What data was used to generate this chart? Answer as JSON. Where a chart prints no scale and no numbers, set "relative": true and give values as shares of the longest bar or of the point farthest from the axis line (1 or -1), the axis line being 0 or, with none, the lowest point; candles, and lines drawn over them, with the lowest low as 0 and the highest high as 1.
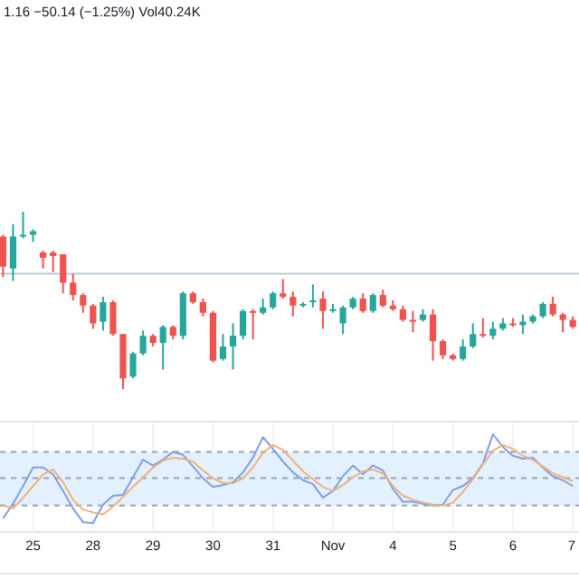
{
  "chart_data": [
    {
      "type": "candlestick",
      "relative": true,
      "annotations": [
        "1.16 −50.14 (−1.25%) Vol40.24K"
      ],
      "categories": [
        null,
        null,
        null,
        null,
        null,
        null,
        null,
        null,
        null,
        null,
        null,
        null,
        null,
        null,
        null,
        null,
        null,
        null,
        null,
        null,
        null,
        null,
        null,
        null,
        null,
        null,
        null,
        null,
        null,
        null,
        null,
        null,
        null,
        null,
        null,
        null,
        null,
        null,
        null,
        null,
        null,
        null,
        null,
        null,
        null,
        null,
        null,
        null,
        null,
        null,
        null,
        null,
        null,
        null,
        null,
        null,
        null,
        null
      ],
      "ohlc": [
        [
          0.86,
          0.87,
          0.63,
          0.69
        ],
        [
          0.68,
          0.93,
          0.61,
          0.86
        ],
        [
          0.86,
          1,
          0.85,
          0.87
        ],
        [
          0.87,
          0.9,
          0.83,
          0.89
        ],
        [
          0.77,
          0.78,
          0.68,
          0.74
        ],
        [
          0.77,
          0.78,
          0.66,
          0.75
        ],
        [
          0.76,
          0.76,
          0.54,
          0.6
        ],
        [
          0.6,
          0.65,
          0.5,
          0.53
        ],
        [
          0.53,
          0.54,
          0.43,
          0.47
        ],
        [
          0.47,
          0.48,
          0.34,
          0.37
        ],
        [
          0.38,
          0.52,
          0.33,
          0.49
        ],
        [
          0.49,
          0.5,
          0.3,
          0.31
        ],
        [
          0.31,
          0.31,
          0,
          0.06
        ],
        [
          0.07,
          0.21,
          0.06,
          0.2
        ],
        [
          0.2,
          0.33,
          0.19,
          0.3
        ],
        [
          0.3,
          0.31,
          0.24,
          0.26
        ],
        [
          0.26,
          0.36,
          0.11,
          0.35
        ],
        [
          0.35,
          0.36,
          0.28,
          0.3
        ],
        [
          0.3,
          0.55,
          0.28,
          0.54
        ],
        [
          0.54,
          0.55,
          0.48,
          0.49
        ],
        [
          0.49,
          0.51,
          0.41,
          0.43
        ],
        [
          0.43,
          0.44,
          0.15,
          0.16
        ],
        [
          0.17,
          0.31,
          0.16,
          0.24
        ],
        [
          0.24,
          0.37,
          0.11,
          0.3
        ],
        [
          0.3,
          0.45,
          0.28,
          0.44
        ],
        [
          0.44,
          0.45,
          0.28,
          0.43
        ],
        [
          0.43,
          0.51,
          0.42,
          0.46
        ],
        [
          0.46,
          0.55,
          0.45,
          0.54
        ],
        [
          0.54,
          0.62,
          0.51,
          0.52
        ],
        [
          0.52,
          0.55,
          0.41,
          0.47
        ],
        [
          0.47,
          0.49,
          0.46,
          0.48
        ],
        [
          0.49,
          0.59,
          0.46,
          0.5
        ],
        [
          0.51,
          0.55,
          0.34,
          0.44
        ],
        [
          0.44,
          0.48,
          0.43,
          0.45
        ],
        [
          0.37,
          0.47,
          0.31,
          0.46
        ],
        [
          0.46,
          0.52,
          0.45,
          0.51
        ],
        [
          0.51,
          0.54,
          0.43,
          0.44
        ],
        [
          0.44,
          0.54,
          0.43,
          0.53
        ],
        [
          0.53,
          0.56,
          0.46,
          0.47
        ],
        [
          0.47,
          0.5,
          0.44,
          0.45
        ],
        [
          0.45,
          0.47,
          0.38,
          0.39
        ],
        [
          0.39,
          0.44,
          0.32,
          0.38
        ],
        [
          0.39,
          0.45,
          0.38,
          0.42
        ],
        [
          0.42,
          0.45,
          0.16,
          0.27
        ],
        [
          0.27,
          0.28,
          0.17,
          0.19
        ],
        [
          0.19,
          0.2,
          0.16,
          0.17
        ],
        [
          0.17,
          0.28,
          0.16,
          0.24
        ],
        [
          0.24,
          0.37,
          0.23,
          0.31
        ],
        [
          0.31,
          0.4,
          0.29,
          0.3
        ],
        [
          0.3,
          0.38,
          0.28,
          0.34
        ],
        [
          0.34,
          0.4,
          0.33,
          0.37
        ],
        [
          0.37,
          0.4,
          0.35,
          0.36
        ],
        [
          0.36,
          0.42,
          0.31,
          0.38
        ],
        [
          0.38,
          0.42,
          0.37,
          0.41
        ],
        [
          0.41,
          0.49,
          0.4,
          0.48
        ],
        [
          0.48,
          0.52,
          0.41,
          0.42
        ],
        [
          0.42,
          0.43,
          0.32,
          0.39
        ],
        [
          0.39,
          0.41,
          0.34,
          0.35
        ]
      ],
      "colors": [
        "#ef5350",
        "#26a69a",
        "#26a69a",
        "#26a69a",
        "#ef5350",
        "#ef5350",
        "#ef5350",
        "#ef5350",
        "#ef5350",
        "#ef5350",
        "#26a69a",
        "#ef5350",
        "#ef5350",
        "#26a69a",
        "#26a69a",
        "#ef5350",
        "#26a69a",
        "#ef5350",
        "#26a69a",
        "#ef5350",
        "#ef5350",
        "#ef5350",
        "#26a69a",
        "#26a69a",
        "#26a69a",
        "#ef5350",
        "#26a69a",
        "#26a69a",
        "#ef5350",
        "#ef5350",
        "#26a69a",
        "#26a69a",
        "#ef5350",
        "#26a69a",
        "#26a69a",
        "#26a69a",
        "#ef5350",
        "#26a69a",
        "#ef5350",
        "#ef5350",
        "#ef5350",
        "#ef5350",
        "#26a69a",
        "#ef5350",
        "#ef5350",
        "#ef5350",
        "#26a69a",
        "#26a69a",
        "#ef5350",
        "#26a69a",
        "#26a69a",
        "#ef5350",
        "#26a69a",
        "#26a69a",
        "#26a69a",
        "#ef5350",
        "#ef5350",
        "#ef5350"
      ],
      "ref_lines": [
        {
          "axis": "y",
          "value": 0.65,
          "color": "#b7cad8",
          "line_style": "solid"
        }
      ]
    },
    {
      "type": "line",
      "relative": true,
      "grid": "x",
      "categories": [
        null,
        null,
        null,
        "25",
        null,
        null,
        null,
        null,
        null,
        "28",
        null,
        null,
        null,
        null,
        null,
        "29",
        null,
        null,
        null,
        null,
        null,
        "30",
        null,
        null,
        null,
        null,
        null,
        "31",
        null,
        null,
        null,
        null,
        null,
        "Nov",
        null,
        null,
        null,
        null,
        null,
        "4",
        null,
        null,
        null,
        null,
        null,
        "5",
        null,
        null,
        null,
        null,
        null,
        "6",
        null,
        null,
        null,
        null,
        null,
        "7"
      ],
      "bands": [
        {
          "axis": "y",
          "from": 0.27,
          "to": 0.82,
          "color": "#e3f0fd"
        }
      ],
      "ref_lines": [
        {
          "axis": "y",
          "value": 0.82,
          "color": "#9aa4b2",
          "line_style": "dashed"
        },
        {
          "axis": "y",
          "value": 0.55,
          "color": "#9aa4b2",
          "line_style": "dashed"
        },
        {
          "axis": "y",
          "value": 0.27,
          "color": "#9aa4b2",
          "line_style": "dashed"
        }
      ],
      "series": [
        {
          "color": "#7f9fe8",
          "values": [
            0.14,
            0.29,
            0.47,
            0.66,
            0.66,
            0.59,
            0.42,
            0.24,
            0.1,
            0.09,
            0.28,
            0.37,
            0.38,
            0.56,
            0.74,
            0.68,
            0.74,
            0.82,
            0.79,
            0.67,
            0.55,
            0.46,
            0.48,
            0.51,
            0.61,
            0.76,
            0.97,
            0.85,
            0.72,
            0.61,
            0.53,
            0.49,
            0.35,
            0.42,
            0.57,
            0.68,
            0.59,
            0.68,
            0.63,
            0.44,
            0.31,
            0.31,
            0.29,
            0.27,
            0.28,
            0.43,
            0.47,
            0.55,
            0.7,
            1,
            0.87,
            0.78,
            0.75,
            0.76,
            0.66,
            0.57,
            0.53,
            0.47
          ]
        },
        {
          "color": "#f0b27a",
          "values": [
            0.27,
            0.24,
            0.35,
            0.47,
            0.59,
            0.64,
            0.51,
            0.33,
            0.23,
            0.2,
            0.18,
            0.26,
            0.36,
            0.46,
            0.56,
            0.66,
            0.73,
            0.76,
            0.75,
            0.72,
            0.63,
            0.55,
            0.5,
            0.5,
            0.55,
            0.66,
            0.81,
            0.89,
            0.84,
            0.73,
            0.62,
            0.54,
            0.46,
            0.42,
            0.48,
            0.56,
            0.62,
            0.64,
            0.6,
            0.47,
            0.37,
            0.33,
            0.3,
            0.28,
            0.27,
            0.3,
            0.41,
            0.54,
            0.69,
            0.83,
            0.89,
            0.85,
            0.78,
            0.74,
            0.67,
            0.6,
            0.56,
            0.52
          ]
        }
      ]
    }
  ]
}
